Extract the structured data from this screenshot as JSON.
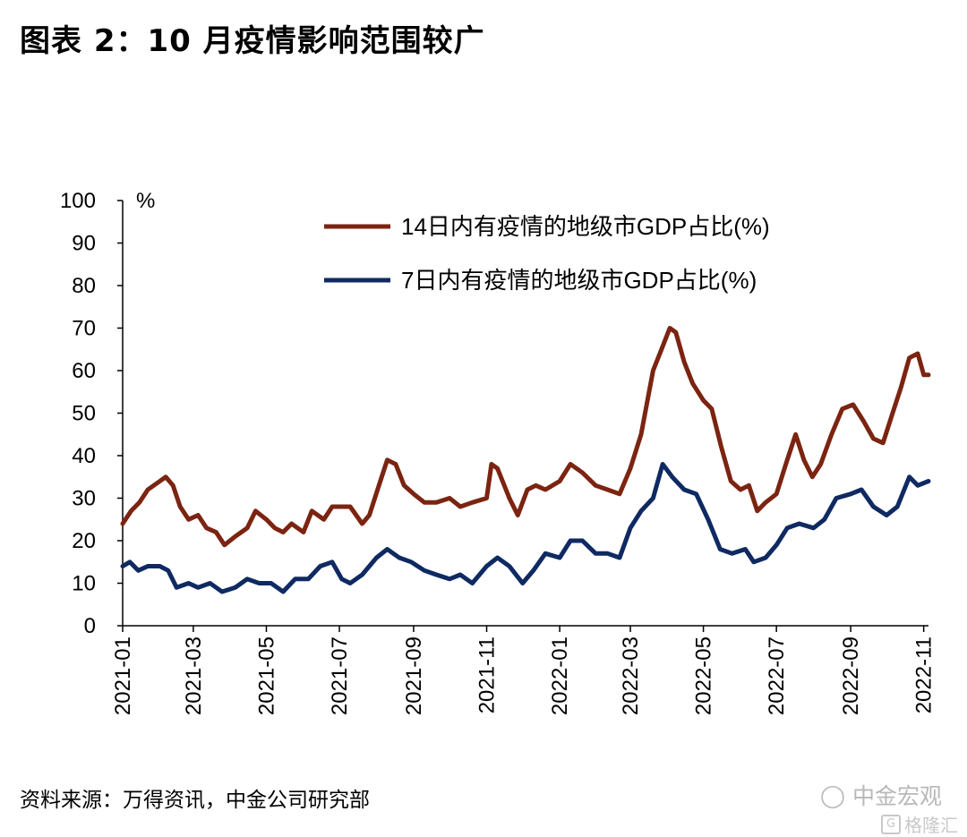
{
  "title": "图表 2：10 月疫情影响范围较广",
  "source": "资料来源：万得资讯，中金公司研究部",
  "watermark": {
    "brand": "中金宏观",
    "site": "格隆汇"
  },
  "colors": {
    "series_14d": "#7b2411",
    "series_7d": "#0f2a62",
    "axis": "#000000"
  },
  "chart_data": {
    "type": "line",
    "title": "",
    "ylabel": "%",
    "xlabel": "",
    "ylim": [
      0,
      100
    ],
    "yticks": [
      0,
      10,
      20,
      30,
      40,
      50,
      60,
      70,
      80,
      90,
      100
    ],
    "xlim": [
      "2021-01-01",
      "2022-11-05"
    ],
    "xticks": [
      "2021-01",
      "2021-03",
      "2021-05",
      "2021-07",
      "2021-09",
      "2021-11",
      "2022-01",
      "2022-03",
      "2022-05",
      "2022-07",
      "2022-09",
      "2022-11"
    ],
    "legend_position": "top-right",
    "grid": false,
    "series": [
      {
        "name": "14日内有疫情的地级市GDP占比(%)",
        "color": "#7b2411",
        "points": [
          [
            "2021-01-01",
            24
          ],
          [
            "2021-01-08",
            27
          ],
          [
            "2021-01-15",
            29
          ],
          [
            "2021-01-22",
            32
          ],
          [
            "2021-02-01",
            34
          ],
          [
            "2021-02-06",
            35
          ],
          [
            "2021-02-12",
            33
          ],
          [
            "2021-02-18",
            28
          ],
          [
            "2021-02-25",
            25
          ],
          [
            "2021-03-05",
            26
          ],
          [
            "2021-03-12",
            23
          ],
          [
            "2021-03-20",
            22
          ],
          [
            "2021-03-27",
            19
          ],
          [
            "2021-04-05",
            21
          ],
          [
            "2021-04-15",
            23
          ],
          [
            "2021-04-22",
            27
          ],
          [
            "2021-05-01",
            25
          ],
          [
            "2021-05-08",
            23
          ],
          [
            "2021-05-15",
            22
          ],
          [
            "2021-05-22",
            24
          ],
          [
            "2021-06-01",
            22
          ],
          [
            "2021-06-08",
            27
          ],
          [
            "2021-06-18",
            25
          ],
          [
            "2021-06-25",
            28
          ],
          [
            "2021-07-01",
            28
          ],
          [
            "2021-07-10",
            28
          ],
          [
            "2021-07-20",
            24
          ],
          [
            "2021-07-26",
            26
          ],
          [
            "2021-08-03",
            33
          ],
          [
            "2021-08-10",
            39
          ],
          [
            "2021-08-17",
            38
          ],
          [
            "2021-08-24",
            33
          ],
          [
            "2021-09-01",
            31
          ],
          [
            "2021-09-10",
            29
          ],
          [
            "2021-09-20",
            29
          ],
          [
            "2021-10-01",
            30
          ],
          [
            "2021-10-10",
            28
          ],
          [
            "2021-10-20",
            29
          ],
          [
            "2021-11-01",
            30
          ],
          [
            "2021-11-05",
            38
          ],
          [
            "2021-11-10",
            37
          ],
          [
            "2021-11-20",
            30
          ],
          [
            "2021-11-27",
            26
          ],
          [
            "2021-12-05",
            32
          ],
          [
            "2021-12-12",
            33
          ],
          [
            "2021-12-20",
            32
          ],
          [
            "2022-01-01",
            34
          ],
          [
            "2022-01-10",
            38
          ],
          [
            "2022-01-20",
            36
          ],
          [
            "2022-01-31",
            33
          ],
          [
            "2022-02-10",
            32
          ],
          [
            "2022-02-20",
            31
          ],
          [
            "2022-03-01",
            37
          ],
          [
            "2022-03-10",
            45
          ],
          [
            "2022-03-20",
            60
          ],
          [
            "2022-03-27",
            65
          ],
          [
            "2022-04-03",
            70
          ],
          [
            "2022-04-08",
            69
          ],
          [
            "2022-04-15",
            62
          ],
          [
            "2022-04-22",
            57
          ],
          [
            "2022-05-01",
            53
          ],
          [
            "2022-05-08",
            51
          ],
          [
            "2022-05-16",
            42
          ],
          [
            "2022-05-24",
            34
          ],
          [
            "2022-06-01",
            32
          ],
          [
            "2022-06-08",
            33
          ],
          [
            "2022-06-15",
            27
          ],
          [
            "2022-06-22",
            29
          ],
          [
            "2022-07-01",
            31
          ],
          [
            "2022-07-10",
            39
          ],
          [
            "2022-07-17",
            45
          ],
          [
            "2022-07-24",
            39
          ],
          [
            "2022-07-31",
            35
          ],
          [
            "2022-08-07",
            38
          ],
          [
            "2022-08-16",
            45
          ],
          [
            "2022-08-25",
            51
          ],
          [
            "2022-09-03",
            52
          ],
          [
            "2022-09-12",
            48
          ],
          [
            "2022-09-20",
            44
          ],
          [
            "2022-09-28",
            43
          ],
          [
            "2022-10-06",
            50
          ],
          [
            "2022-10-13",
            56
          ],
          [
            "2022-10-20",
            63
          ],
          [
            "2022-10-27",
            64
          ],
          [
            "2022-11-01",
            59
          ],
          [
            "2022-11-05",
            59
          ]
        ]
      },
      {
        "name": "7日内有疫情的地级市GDP占比(%)",
        "color": "#0f2a62",
        "points": [
          [
            "2021-01-01",
            14
          ],
          [
            "2021-01-07",
            15
          ],
          [
            "2021-01-14",
            13
          ],
          [
            "2021-01-22",
            14
          ],
          [
            "2021-02-01",
            14
          ],
          [
            "2021-02-08",
            13
          ],
          [
            "2021-02-15",
            9
          ],
          [
            "2021-02-25",
            10
          ],
          [
            "2021-03-05",
            9
          ],
          [
            "2021-03-15",
            10
          ],
          [
            "2021-03-25",
            8
          ],
          [
            "2021-04-05",
            9
          ],
          [
            "2021-04-15",
            11
          ],
          [
            "2021-04-25",
            10
          ],
          [
            "2021-05-05",
            10
          ],
          [
            "2021-05-15",
            8
          ],
          [
            "2021-05-25",
            11
          ],
          [
            "2021-06-05",
            11
          ],
          [
            "2021-06-15",
            14
          ],
          [
            "2021-06-25",
            15
          ],
          [
            "2021-07-03",
            11
          ],
          [
            "2021-07-10",
            10
          ],
          [
            "2021-07-20",
            12
          ],
          [
            "2021-08-01",
            16
          ],
          [
            "2021-08-10",
            18
          ],
          [
            "2021-08-20",
            16
          ],
          [
            "2021-08-30",
            15
          ],
          [
            "2021-09-10",
            13
          ],
          [
            "2021-09-20",
            12
          ],
          [
            "2021-10-01",
            11
          ],
          [
            "2021-10-10",
            12
          ],
          [
            "2021-10-20",
            10
          ],
          [
            "2021-11-01",
            14
          ],
          [
            "2021-11-10",
            16
          ],
          [
            "2021-11-20",
            14
          ],
          [
            "2021-12-01",
            10
          ],
          [
            "2021-12-10",
            13
          ],
          [
            "2021-12-20",
            17
          ],
          [
            "2022-01-01",
            16
          ],
          [
            "2022-01-10",
            20
          ],
          [
            "2022-01-20",
            20
          ],
          [
            "2022-01-31",
            17
          ],
          [
            "2022-02-10",
            17
          ],
          [
            "2022-02-20",
            16
          ],
          [
            "2022-03-01",
            23
          ],
          [
            "2022-03-10",
            27
          ],
          [
            "2022-03-20",
            30
          ],
          [
            "2022-03-28",
            38
          ],
          [
            "2022-04-05",
            35
          ],
          [
            "2022-04-15",
            32
          ],
          [
            "2022-04-25",
            31
          ],
          [
            "2022-05-05",
            25
          ],
          [
            "2022-05-15",
            18
          ],
          [
            "2022-05-25",
            17
          ],
          [
            "2022-06-05",
            18
          ],
          [
            "2022-06-12",
            15
          ],
          [
            "2022-06-22",
            16
          ],
          [
            "2022-07-01",
            19
          ],
          [
            "2022-07-10",
            23
          ],
          [
            "2022-07-20",
            24
          ],
          [
            "2022-08-01",
            23
          ],
          [
            "2022-08-10",
            25
          ],
          [
            "2022-08-20",
            30
          ],
          [
            "2022-09-01",
            31
          ],
          [
            "2022-09-10",
            32
          ],
          [
            "2022-09-20",
            28
          ],
          [
            "2022-10-01",
            26
          ],
          [
            "2022-10-10",
            28
          ],
          [
            "2022-10-20",
            35
          ],
          [
            "2022-10-27",
            33
          ],
          [
            "2022-11-05",
            34
          ]
        ]
      }
    ]
  }
}
